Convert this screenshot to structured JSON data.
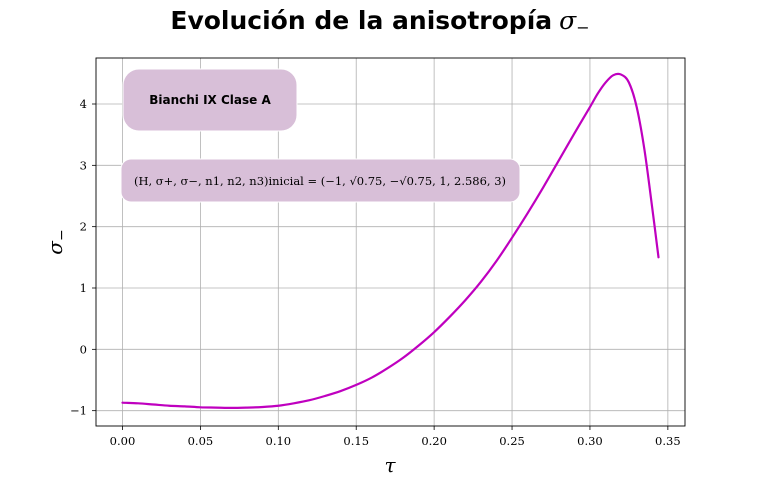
{
  "chart_data": {
    "type": "line",
    "title": "Evolución de la anisotropía",
    "title_symbol": "σ",
    "title_symbol_sub": "−",
    "xlabel": "τ",
    "ylabel": "σ",
    "ylabel_sub": "−",
    "xlim": [
      -0.017,
      0.361
    ],
    "ylim": [
      -1.25,
      4.75
    ],
    "xticks": [
      0.0,
      0.05,
      0.1,
      0.15,
      0.2,
      0.25,
      0.3,
      0.35
    ],
    "xtick_labels": [
      "0.00",
      "0.05",
      "0.10",
      "0.15",
      "0.20",
      "0.25",
      "0.30",
      "0.35"
    ],
    "yticks": [
      -1,
      0,
      1,
      2,
      3,
      4
    ],
    "ytick_labels": [
      "−1",
      "0",
      "1",
      "2",
      "3",
      "4"
    ],
    "grid": true,
    "series": [
      {
        "color": "#bf00bf",
        "x": [
          0.0,
          0.01,
          0.02,
          0.03,
          0.04,
          0.05,
          0.06,
          0.07,
          0.08,
          0.09,
          0.1,
          0.11,
          0.12,
          0.13,
          0.14,
          0.15,
          0.16,
          0.17,
          0.18,
          0.19,
          0.2,
          0.21,
          0.22,
          0.23,
          0.24,
          0.25,
          0.26,
          0.27,
          0.28,
          0.29,
          0.3,
          0.305,
          0.31,
          0.315,
          0.32,
          0.325,
          0.33,
          0.335,
          0.34,
          0.344
        ],
        "y": [
          -0.87,
          -0.88,
          -0.9,
          -0.92,
          -0.93,
          -0.945,
          -0.95,
          -0.955,
          -0.95,
          -0.94,
          -0.92,
          -0.88,
          -0.83,
          -0.76,
          -0.68,
          -0.58,
          -0.46,
          -0.31,
          -0.14,
          0.06,
          0.28,
          0.53,
          0.8,
          1.1,
          1.44,
          1.82,
          2.22,
          2.64,
          3.08,
          3.52,
          3.95,
          4.17,
          4.35,
          4.47,
          4.48,
          4.35,
          3.95,
          3.25,
          2.3,
          1.5
        ]
      }
    ],
    "annotations": [
      {
        "name": "model",
        "text": "Bianchi IX Clase A"
      },
      {
        "name": "initial",
        "text": "(H, σ+, σ−, n1, n2, n3)inicial = (−1, √0.75, −√0.75, 1, 2.586, 3)"
      }
    ],
    "annotation_color": "#d8bfd8"
  }
}
